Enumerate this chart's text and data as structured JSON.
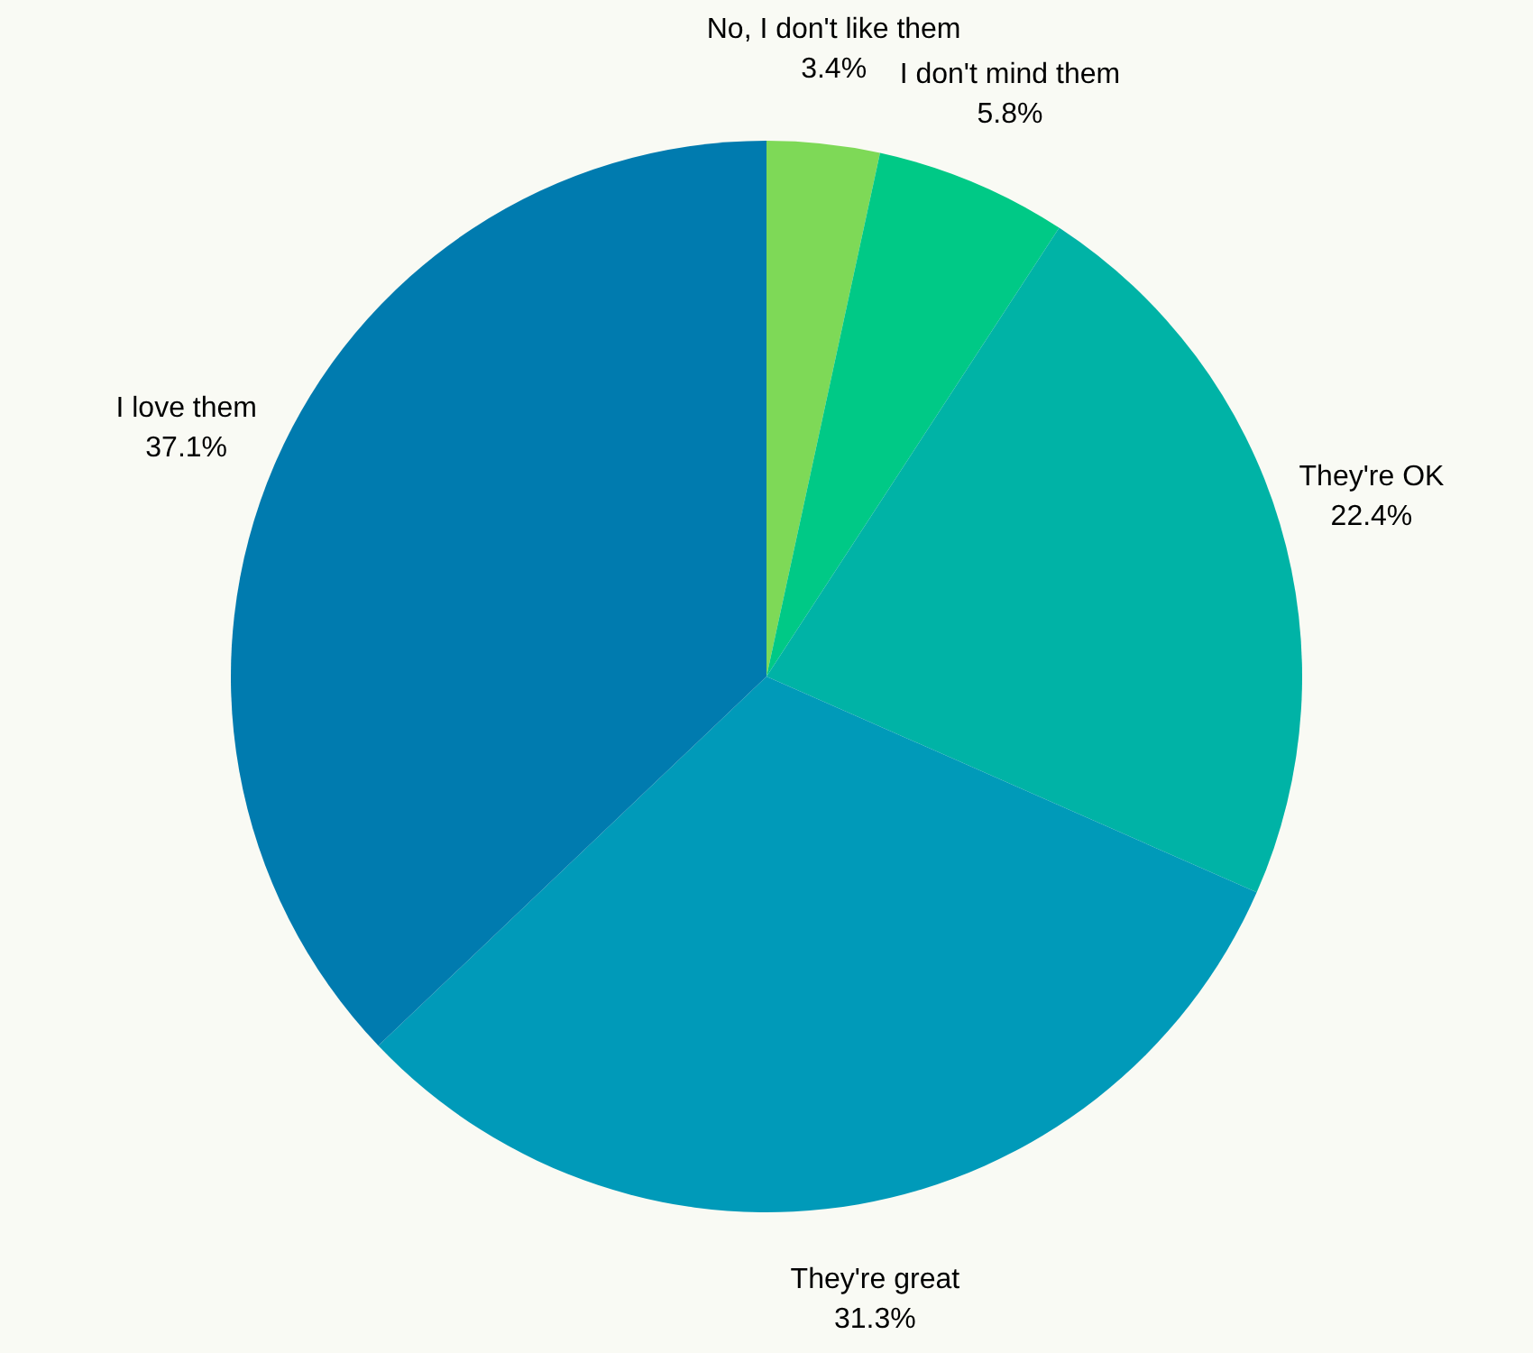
{
  "chart_data": {
    "type": "pie",
    "categories": [
      "No, I don't like them",
      "I don't mind them",
      "They're OK",
      "They're great",
      "I love them"
    ],
    "values": [
      3.4,
      5.8,
      22.4,
      31.3,
      37.1
    ],
    "value_labels": [
      "3.4%",
      "5.8%",
      "22.4%",
      "31.3%",
      "37.1%"
    ],
    "colors": [
      "#7ed957",
      "#00c986",
      "#00b3a6",
      "#009ab9",
      "#007baf"
    ]
  }
}
